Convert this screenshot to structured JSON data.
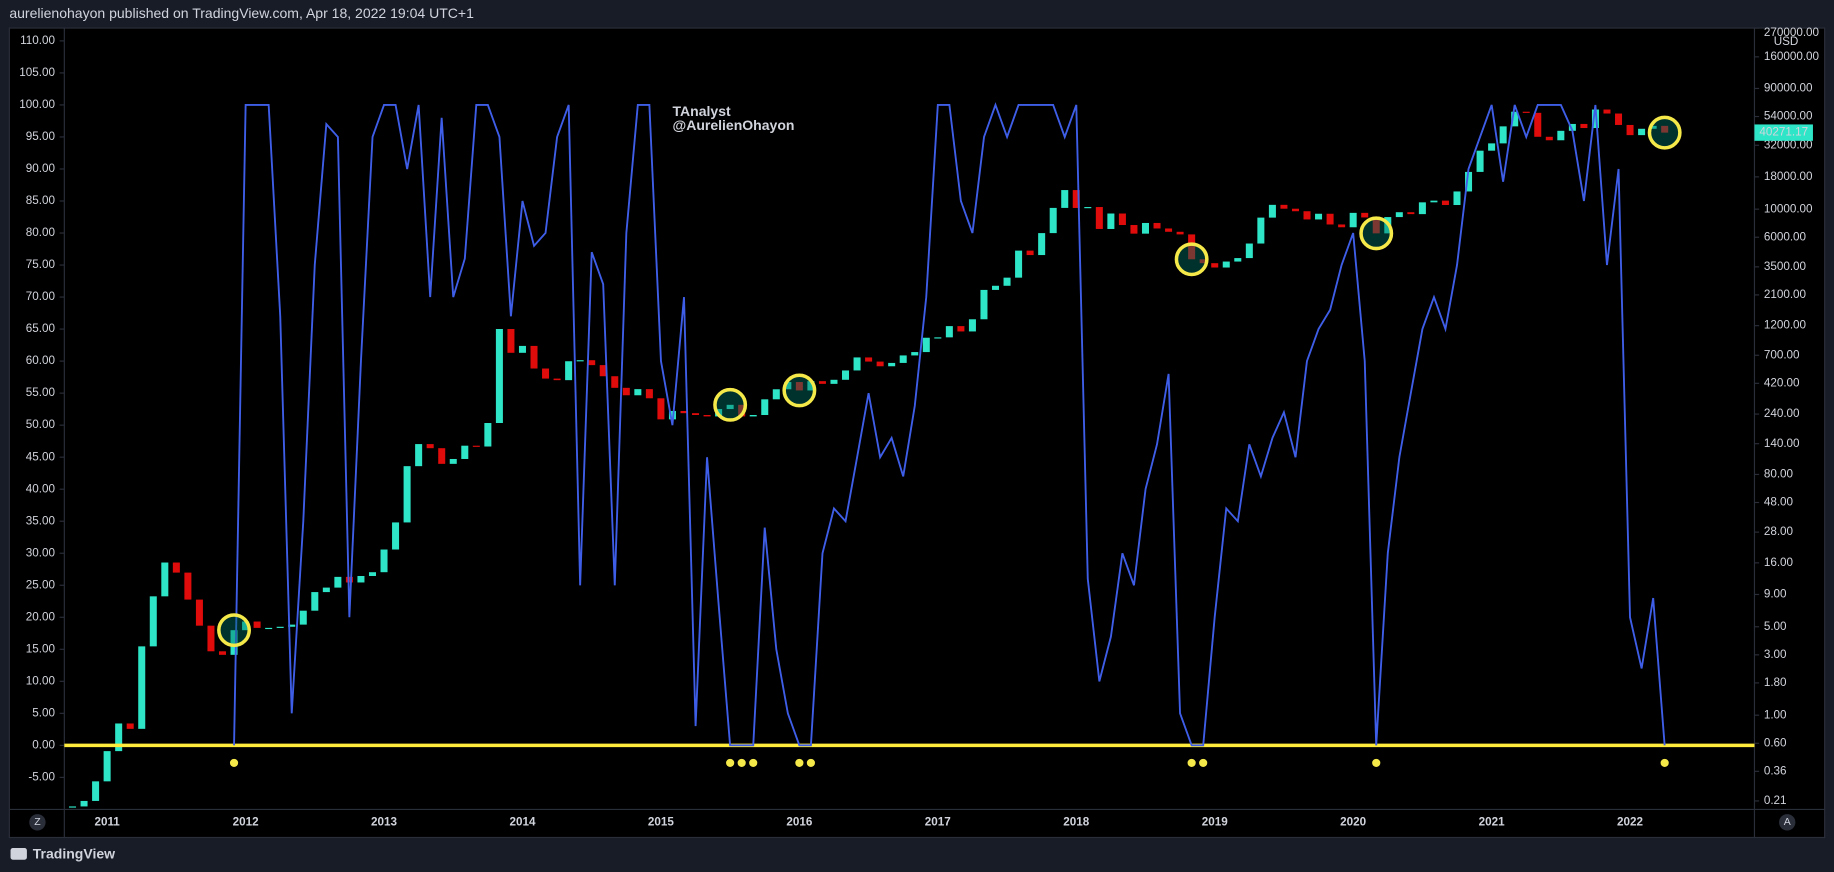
{
  "header": "aurelienohayon published on TradingView.com, Apr 18, 2022 19:04 UTC+1",
  "footer": "TradingView",
  "buttons": [
    "Z",
    "A"
  ],
  "chart_data": {
    "type": "candlestick",
    "watermark": [
      "TAnalyst",
      "@AurelienOhayon"
    ],
    "categories": [
      null,
      null,
      null,
      "2011",
      null,
      null,
      null,
      null,
      null,
      null,
      null,
      null,
      null,
      null,
      null,
      "2012",
      null,
      null,
      null,
      null,
      null,
      null,
      null,
      null,
      null,
      null,
      null,
      "2013",
      null,
      null,
      null,
      null,
      null,
      null,
      null,
      null,
      null,
      null,
      null,
      "2014",
      null,
      null,
      null,
      null,
      null,
      null,
      null,
      null,
      null,
      null,
      null,
      "2015",
      null,
      null,
      null,
      null,
      null,
      null,
      null,
      null,
      null,
      null,
      null,
      "2016",
      null,
      null,
      null,
      null,
      null,
      null,
      null,
      null,
      null,
      null,
      null,
      "2017",
      null,
      null,
      null,
      null,
      null,
      null,
      null,
      null,
      null,
      null,
      null,
      "2018",
      null,
      null,
      null,
      null,
      null,
      null,
      null,
      null,
      null,
      null,
      null,
      "2019",
      null,
      null,
      null,
      null,
      null,
      null,
      null,
      null,
      null,
      null,
      null,
      "2020",
      null,
      null,
      null,
      null,
      null,
      null,
      null,
      null,
      null,
      null,
      null,
      "2021",
      null,
      null,
      null,
      null,
      null,
      null,
      null,
      null,
      null,
      null,
      null,
      "2022",
      null,
      null,
      null
    ],
    "axis": "y2",
    "close": [
      0.19,
      0.21,
      0.3,
      0.52,
      0.86,
      0.78,
      3.5,
      8.7,
      16.1,
      13.4,
      8.2,
      5.1,
      3.2,
      3.0,
      4.7,
      5.5,
      4.9,
      4.9,
      5.0,
      5.2,
      6.7,
      9.4,
      10.2,
      12.4,
      11.2,
      12.6,
      13.5,
      20.4,
      33.4,
      93,
      139,
      129,
      97,
      106,
      135,
      133,
      204,
      1129,
      732,
      830,
      550,
      458,
      445,
      628,
      640,
      585,
      478,
      387,
      338,
      378,
      320,
      218,
      254,
      244,
      236,
      230,
      263,
      284,
      230,
      236,
      314,
      377,
      430,
      369,
      437,
      416,
      448,
      531,
      673,
      624,
      573,
      609,
      698,
      742,
      963,
      970,
      1190,
      1080,
      1348,
      2300,
      2480,
      2875,
      4703,
      4338,
      6468,
      10233,
      14156,
      10221,
      10397,
      6973,
      9240,
      7494,
      6404,
      7780,
      7037,
      6625,
      6317,
      4017,
      3742,
      3457,
      3854,
      4105,
      5350,
      8574,
      10817,
      10085,
      9631,
      8293,
      9199,
      7569,
      7193,
      9350,
      8599,
      6438,
      8658,
      9461,
      9137,
      11323,
      11681,
      10784,
      13804,
      19700,
      28990,
      33114,
      45137,
      58918,
      57750,
      37332,
      35041,
      41626,
      47166,
      43790,
      61318,
      57005,
      46306,
      38483,
      43193,
      45538,
      40271.17
    ],
    "up_color": "#2ee6c7",
    "down_color": "#e00b0b",
    "oscillator": {
      "type": "line",
      "color": "#3f5ee8",
      "values": [
        null,
        null,
        null,
        null,
        null,
        null,
        null,
        null,
        null,
        null,
        null,
        null,
        null,
        null,
        0,
        100,
        100,
        100,
        67,
        5,
        35,
        75,
        97,
        95,
        20,
        60,
        95,
        100,
        100,
        90,
        100,
        70,
        98,
        70,
        76,
        100,
        100,
        95,
        67,
        85,
        78,
        80,
        95,
        100,
        25,
        77,
        72,
        25,
        80,
        100,
        100,
        60,
        50,
        70,
        3,
        45,
        22,
        0,
        0,
        0,
        34,
        15,
        5,
        0,
        0,
        30,
        37,
        35,
        45,
        55,
        45,
        48,
        42,
        53,
        70,
        100,
        100,
        85,
        80,
        95,
        100,
        95,
        100,
        100,
        100,
        100,
        95,
        100,
        26,
        10,
        17,
        30,
        25,
        40,
        47,
        58,
        5,
        0,
        0,
        20,
        37,
        35,
        47,
        42,
        48,
        52,
        45,
        60,
        65,
        68,
        75,
        80,
        60,
        0,
        30,
        45,
        55,
        65,
        70,
        65,
        75,
        90,
        95,
        100,
        88,
        100,
        95,
        100,
        100,
        100,
        96,
        85,
        100,
        75,
        90,
        20,
        12,
        23,
        0
      ]
    },
    "signal_color": "#f5e94a",
    "level_line": {
      "value": 0,
      "color": "#ffeb3b"
    },
    "ylim": [
      -10,
      112
    ],
    "yticks": [
      {
        "value": 110,
        "label": "110.00"
      },
      {
        "value": 105,
        "label": "105.00"
      },
      {
        "value": 100,
        "label": "100.00"
      },
      {
        "value": 95,
        "label": "95.00"
      },
      {
        "value": 90,
        "label": "90.00"
      },
      {
        "value": 85,
        "label": "85.00"
      },
      {
        "value": 80,
        "label": "80.00"
      },
      {
        "value": 75,
        "label": "75.00"
      },
      {
        "value": 70,
        "label": "70.00"
      },
      {
        "value": 65,
        "label": "65.00"
      },
      {
        "value": 60,
        "label": "60.00"
      },
      {
        "value": 55,
        "label": "55.00"
      },
      {
        "value": 50,
        "label": "50.00"
      },
      {
        "value": 45,
        "label": "45.00"
      },
      {
        "value": 40,
        "label": "40.00"
      },
      {
        "value": 35,
        "label": "35.00"
      },
      {
        "value": 30,
        "label": "30.00"
      },
      {
        "value": 25,
        "label": "25.00"
      },
      {
        "value": 20,
        "label": "20.00"
      },
      {
        "value": 15,
        "label": "15.00"
      },
      {
        "value": 10,
        "label": "10.00"
      },
      {
        "value": 5,
        "label": "5.00"
      },
      {
        "value": 0,
        "label": "0.00"
      },
      {
        "value": -5,
        "label": "-5.00"
      }
    ],
    "y2lim": [
      0.18,
      270000
    ],
    "y2_log": true,
    "y2_unit": "USD",
    "y2ticks": [
      {
        "value": 270000,
        "label": "270000.00"
      },
      {
        "value": 160000,
        "label": "160000.00"
      },
      {
        "value": 90000,
        "label": "90000.00"
      },
      {
        "value": 54000,
        "label": "54000.00"
      },
      {
        "value": 32000,
        "label": "32000.00"
      },
      {
        "value": 18000,
        "label": "18000.00"
      },
      {
        "value": 10000,
        "label": "10000.00"
      },
      {
        "value": 6000,
        "label": "6000.00"
      },
      {
        "value": 3500,
        "label": "3500.00"
      },
      {
        "value": 2100,
        "label": "2100.00"
      },
      {
        "value": 1200,
        "label": "1200.00"
      },
      {
        "value": 700,
        "label": "700.00"
      },
      {
        "value": 420,
        "label": "420.00"
      },
      {
        "value": 240,
        "label": "240.00"
      },
      {
        "value": 140,
        "label": "140.00"
      },
      {
        "value": 80,
        "label": "80.00"
      },
      {
        "value": 48,
        "label": "48.00"
      },
      {
        "value": 28,
        "label": "28.00"
      },
      {
        "value": 16,
        "label": "16.00"
      },
      {
        "value": 9,
        "label": "9.00"
      },
      {
        "value": 5,
        "label": "5.00"
      },
      {
        "value": 3,
        "label": "3.00"
      },
      {
        "value": 1.8,
        "label": "1.80"
      },
      {
        "value": 1,
        "label": "1.00"
      },
      {
        "value": 0.6,
        "label": "0.60"
      },
      {
        "value": 0.36,
        "label": "0.36"
      },
      {
        "value": 0.21,
        "label": "0.21"
      }
    ]
  }
}
